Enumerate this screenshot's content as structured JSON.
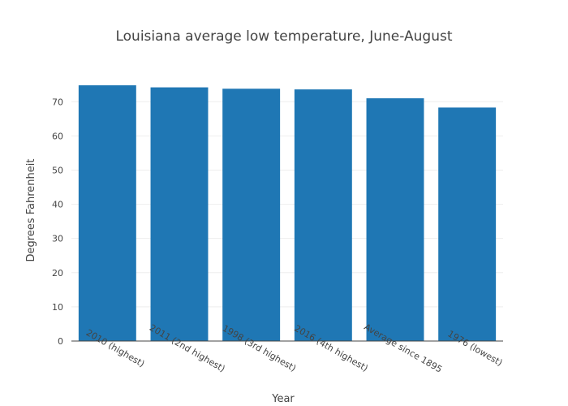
{
  "chart_data": {
    "type": "bar",
    "title": "Louisiana average low temperature, June-August",
    "xlabel": "Year",
    "ylabel": "Degrees Fahrenheit",
    "categories": [
      "2010 (highest)",
      "2011 (2nd highest)",
      "1998 (3rd highest)",
      "2016 (4th highest)",
      "Average since 1895",
      "1976 (lowest)"
    ],
    "values": [
      74.8,
      74.2,
      73.8,
      73.6,
      71.0,
      68.3
    ],
    "ylim": [
      0,
      76
    ],
    "yticks": [
      0,
      10,
      20,
      30,
      40,
      50,
      60,
      70
    ],
    "bar_color": "#1f77b4",
    "grid": true,
    "legend": "none"
  }
}
